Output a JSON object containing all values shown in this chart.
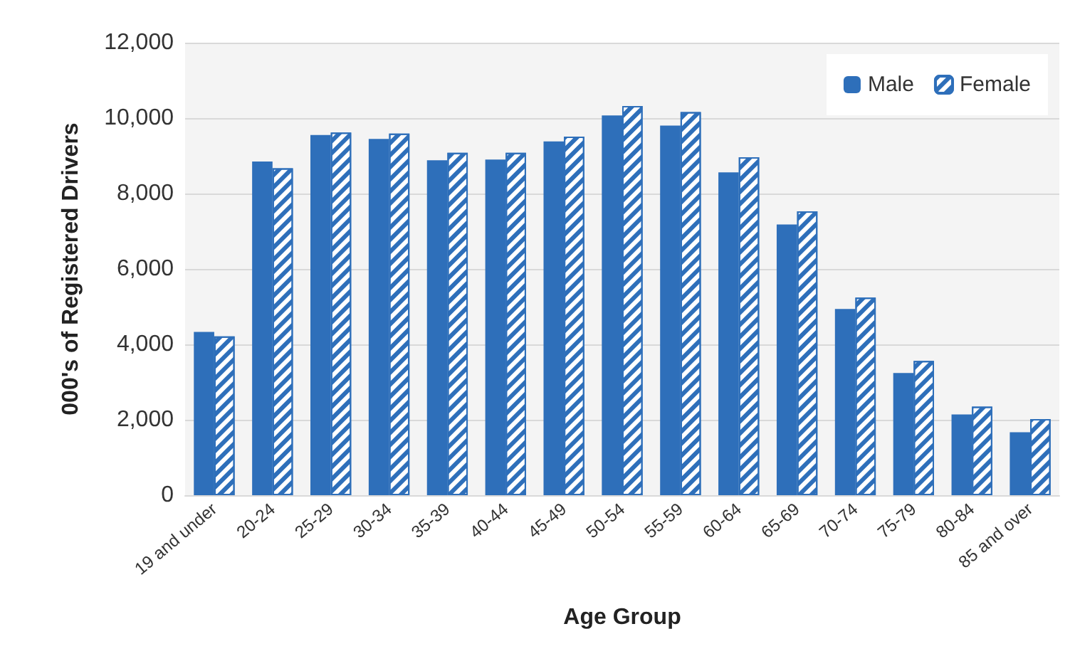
{
  "chart_data": {
    "type": "bar",
    "xlabel": "Age Group",
    "ylabel": "000's of Registered Drivers",
    "categories": [
      "19 and under",
      "20-24",
      "25-29",
      "30-34",
      "35-39",
      "40-44",
      "45-49",
      "50-54",
      "55-59",
      "60-64",
      "65-69",
      "70-74",
      "75-79",
      "80-84",
      "85 and over"
    ],
    "series": [
      {
        "name": "Male",
        "color": "#2e6fba",
        "values": [
          4330,
          8850,
          9550,
          9450,
          8880,
          8900,
          9380,
          10070,
          9800,
          8560,
          7180,
          4940,
          3240,
          2140,
          1670
        ]
      },
      {
        "name": "Female",
        "color": "#2e6fba",
        "values": [
          4210,
          8670,
          9620,
          9590,
          9080,
          9080,
          9510,
          10320,
          10160,
          8960,
          7530,
          5240,
          3560,
          2350,
          2020
        ]
      }
    ],
    "ylim": [
      0,
      12000
    ],
    "yticks": [
      0,
      {
        "value": 2000,
        "label": "2,000"
      },
      {
        "value": 4000,
        "label": "4,000"
      },
      {
        "value": 6000,
        "label": "6,000"
      },
      {
        "value": 8000,
        "label": "8,000"
      },
      {
        "value": 10000,
        "label": "10,000"
      },
      {
        "value": 12000,
        "label": "12,000"
      }
    ],
    "grid": "y",
    "legend": "top right"
  }
}
